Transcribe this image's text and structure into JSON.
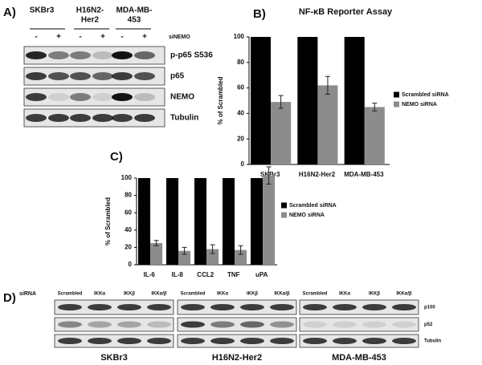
{
  "chart_data": [
    {
      "type": "bar",
      "title": "NF-κB Reporter Assay",
      "ylabel": "% of Scrambled",
      "categories": [
        "SKBr3",
        "H16N2-Her2",
        "MDA-MB-453"
      ],
      "series": [
        {
          "name": "Scrambled siRNA",
          "color": "#000000",
          "values": [
            100,
            100,
            100
          ]
        },
        {
          "name": "NEMO siRNA",
          "color": "#8c8c8c",
          "values": [
            49,
            62,
            45
          ],
          "errors": [
            5,
            7,
            3
          ]
        }
      ],
      "ylim": [
        0,
        100
      ],
      "yticks": [
        0,
        20,
        40,
        60,
        80,
        100
      ]
    },
    {
      "type": "bar",
      "ylabel": "% of Scrambled",
      "categories": [
        "IL-6",
        "IL-8",
        "CCL2",
        "TNF",
        "uPA"
      ],
      "series": [
        {
          "name": "Scrambled siRNA",
          "color": "#000000",
          "values": [
            100,
            100,
            100,
            100,
            100
          ]
        },
        {
          "name": "NEMO siRNA",
          "color": "#8c8c8c",
          "values": [
            25,
            16,
            18,
            17,
            103
          ],
          "errors": [
            3,
            4,
            5,
            5,
            10
          ]
        }
      ],
      "ylim": [
        0,
        100
      ],
      "yticks": [
        0,
        20,
        40,
        60,
        80,
        100
      ]
    }
  ],
  "panel_labels": [
    "A)",
    "B)",
    "C)",
    "D)"
  ],
  "panel_a": {
    "cell_lines": [
      [
        "SKBr3"
      ],
      [
        "H16N2-",
        "Her2"
      ],
      [
        "MDA-MB-",
        "453"
      ]
    ],
    "treatment": [
      "-",
      "+",
      "-",
      "+",
      "-",
      "+"
    ],
    "treatment_label": "siNEMO",
    "rows": [
      "p-p65 S536",
      "p65",
      "NEMO",
      "Tubulin"
    ]
  },
  "panel_d": {
    "sirna_label": "siRNA",
    "lanes": [
      "Scrambled",
      "IKKα",
      "IKKβ",
      "IKKα/β"
    ],
    "rows": [
      "p100",
      "p52",
      "Tubulin"
    ],
    "cell_lines": [
      "SKBr3",
      "H16N2-Her2",
      "MDA-MB-453"
    ]
  }
}
